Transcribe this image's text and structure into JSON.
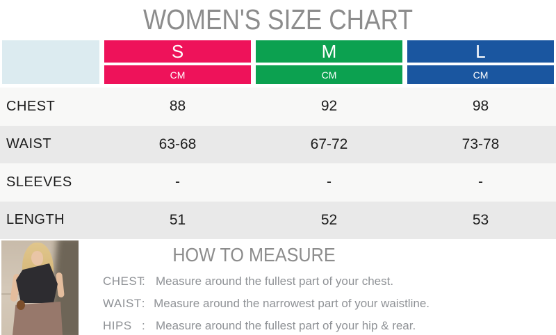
{
  "title": "WOMEN'S SIZE CHART",
  "chart_data": {
    "type": "table",
    "title": "WOMEN'S SIZE CHART",
    "unit": "CM",
    "columns": [
      "",
      "S",
      "M",
      "L"
    ],
    "rows": [
      [
        "CHEST",
        "88",
        "92",
        "98"
      ],
      [
        "WAIST",
        "63-68",
        "67-72",
        "73-78"
      ],
      [
        "SLEEVES",
        "-",
        "-",
        "-"
      ],
      [
        "LENGTH",
        "51",
        "52",
        "53"
      ]
    ]
  },
  "measure": {
    "heading": "HOW TO MEASURE",
    "colon": ":",
    "items": [
      {
        "label": "CHEST",
        "text": "Measure around the fullest part of your chest."
      },
      {
        "label": "WAIST",
        "text": "Measure around the narrowest part of your waistline."
      },
      {
        "label": "HIPS",
        "text": "Measure around the fullest part of your hip & rear."
      }
    ]
  },
  "colors": {
    "size_s": "#ee125a",
    "size_m": "#0ca150",
    "size_l": "#1a56a0",
    "corner_bg": "#dcebf0",
    "row_light": "#f8f8f7",
    "row_dark": "#e9e9e9",
    "heading_gray": "#8c8c8c",
    "body_text": "#1c1c1c",
    "measure_text": "#8f9296"
  }
}
